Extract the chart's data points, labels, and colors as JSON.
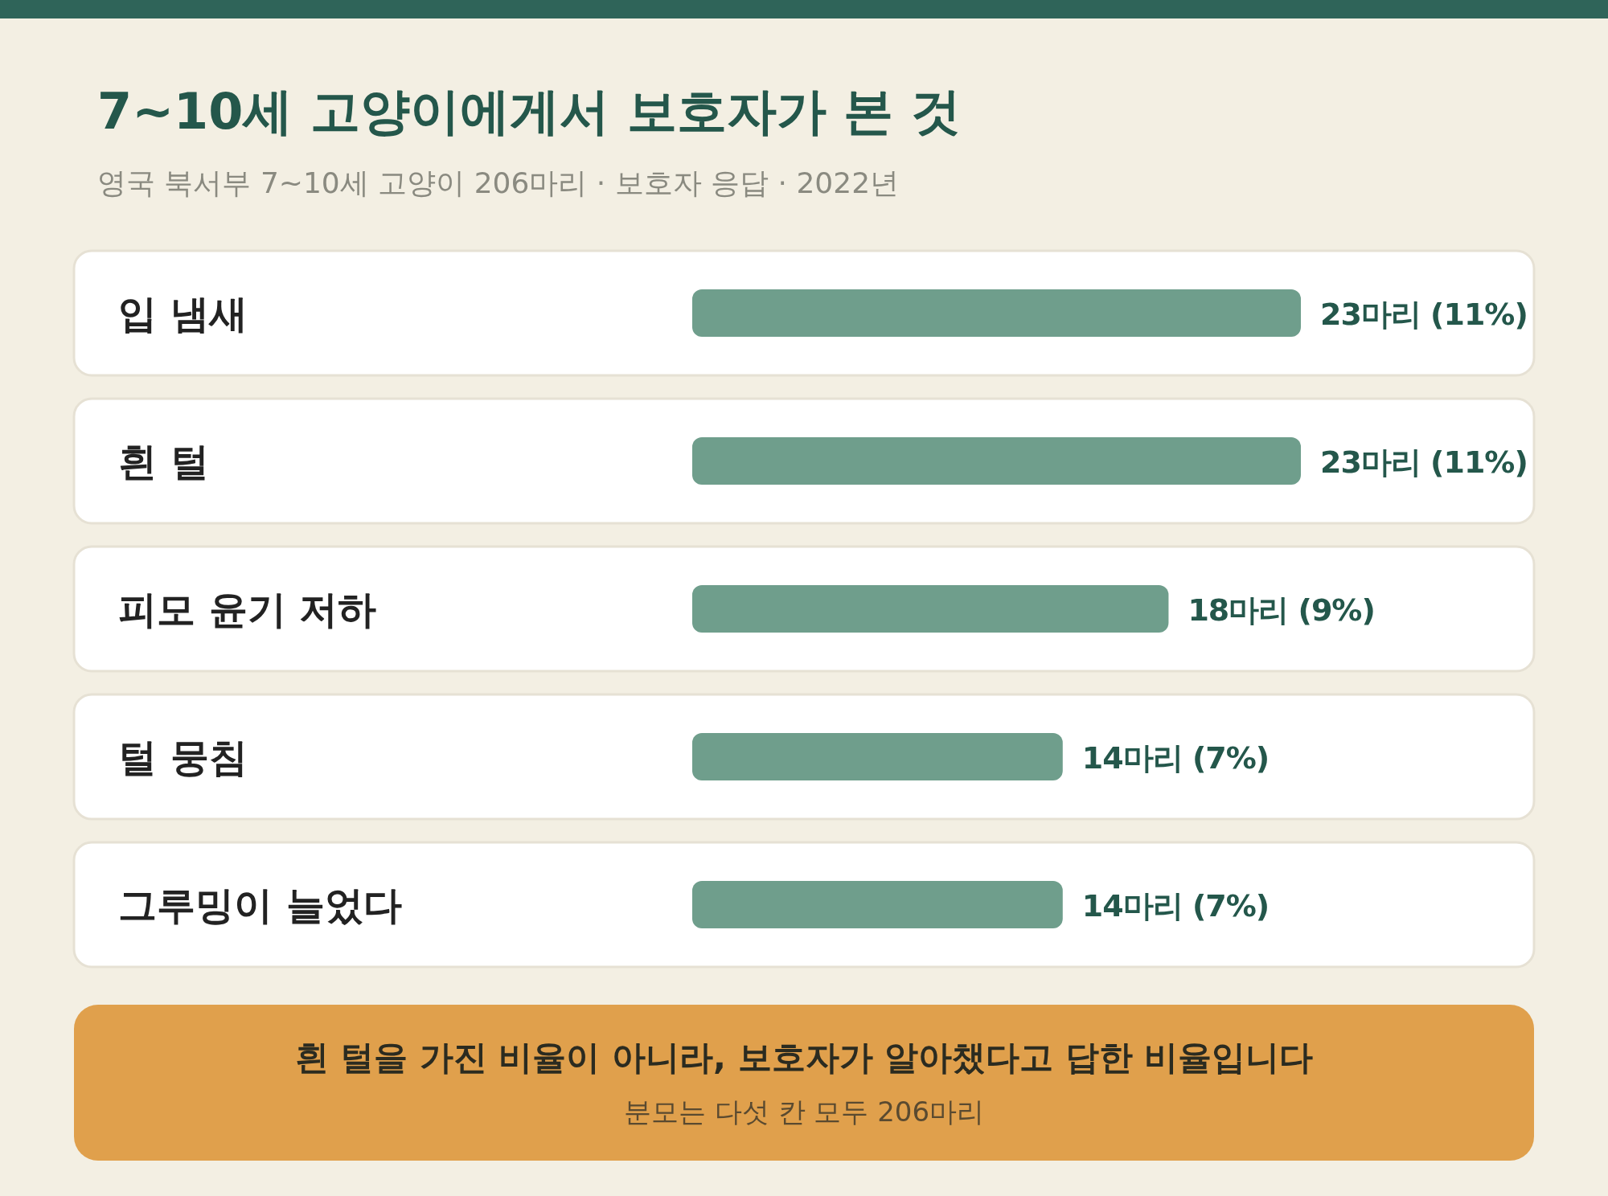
{
  "chart_data": {
    "type": "bar",
    "orientation": "horizontal",
    "title": "7~10세 고양이에게서 보호자가 본 것",
    "subtitle": "영국 북서부 7~10세 고양이 206마리 · 보호자 응답 · 2022년",
    "categories": [
      "입 냄새",
      "흰 털",
      "피모 윤기 저하",
      "털 뭉침",
      "그루밍이 늘었다"
    ],
    "values": [
      23,
      23,
      18,
      14,
      14
    ],
    "value_labels": [
      "23마리 (11%)",
      "23마리 (11%)",
      "18마리 (9%)",
      "14마리 (7%)",
      "14마리 (7%)"
    ],
    "color": "#6f9e8c",
    "annotations": [
      "흰 털을 가진 비율이 아니라, 보호자가 알아챘다고 답한 비율입니다",
      "분모는 다섯 칸 모두 206마리"
    ]
  }
}
